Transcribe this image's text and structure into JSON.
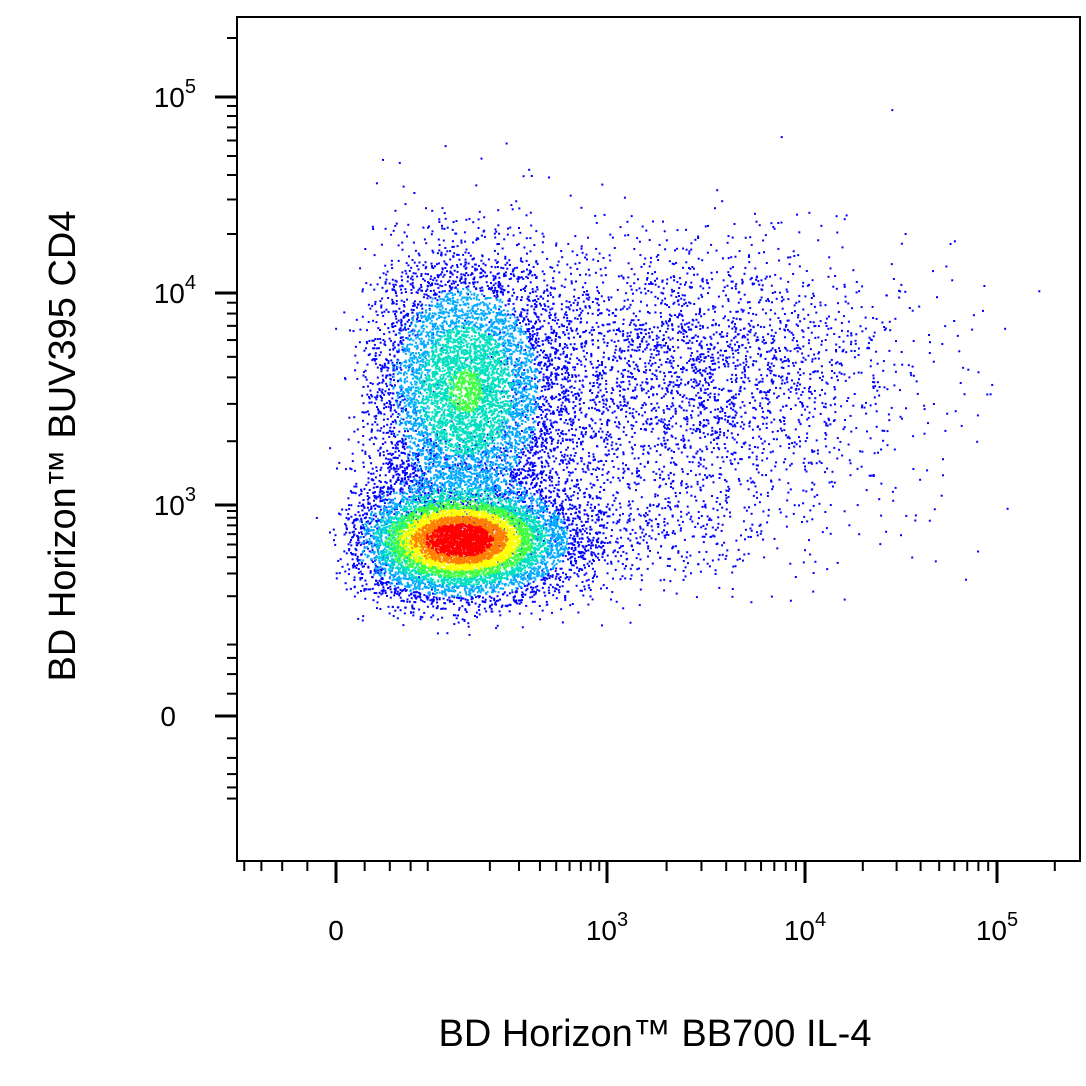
{
  "chart_data": {
    "type": "scatter",
    "subtype": "flow-cytometry-density-dot-plot",
    "xlabel": "BD Horizon™ BB700 IL-4",
    "ylabel": "BD Horizon™ BUV395 CD4",
    "x_scale": "biexponential",
    "y_scale": "biexponential",
    "x_ticks": [
      {
        "base": "0",
        "exp": "",
        "value": 0
      },
      {
        "base": "10",
        "exp": "3",
        "value": 1000
      },
      {
        "base": "10",
        "exp": "4",
        "value": 10000
      },
      {
        "base": "10",
        "exp": "5",
        "value": 100000
      }
    ],
    "y_ticks": [
      {
        "base": "0",
        "exp": "",
        "value": 0
      },
      {
        "base": "10",
        "exp": "3",
        "value": 1000
      },
      {
        "base": "10",
        "exp": "4",
        "value": 10000
      },
      {
        "base": "10",
        "exp": "5",
        "value": 100000
      }
    ],
    "xlim": [
      -150,
      200000
    ],
    "ylim": [
      -200,
      200000
    ],
    "color_scale": [
      "#0000ff",
      "#00aaff",
      "#00e0c0",
      "#40ff40",
      "#ffff00",
      "#ff8000",
      "#ff0000"
    ],
    "populations": [
      {
        "x_center": 150,
        "y_center": 3500,
        "x_spread": 0.28,
        "y_spread": 0.32,
        "count": 6500,
        "peak_density": 0.45
      },
      {
        "x_center": 140,
        "y_center": 550,
        "x_spread": 0.32,
        "y_spread": 0.22,
        "count": 9000,
        "peak_density": 1.0
      },
      {
        "x_center": 2500,
        "y_center": 4500,
        "x_spread": 0.55,
        "y_spread": 0.3,
        "count": 2800,
        "peak_density": 0.05
      },
      {
        "x_center": 1200,
        "y_center": 900,
        "x_spread": 0.55,
        "y_spread": 0.3,
        "count": 900,
        "peak_density": 0.03
      }
    ]
  }
}
